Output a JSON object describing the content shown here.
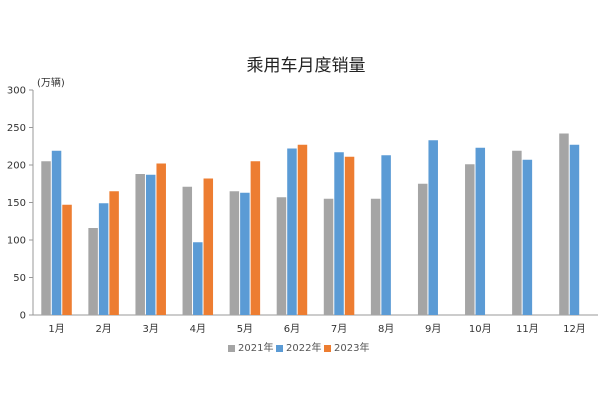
{
  "chart_data": {
    "type": "bar",
    "title": "乘用车月度销量",
    "unit_label": "(万辆)",
    "xlabel": "",
    "ylabel": "",
    "ylim": [
      0,
      300
    ],
    "yticks": [
      0,
      50,
      100,
      150,
      200,
      250,
      300
    ],
    "grid": false,
    "legend_position": "bottom",
    "categories": [
      "1月",
      "2月",
      "3月",
      "4月",
      "5月",
      "6月",
      "7月",
      "8月",
      "9月",
      "10月",
      "11月",
      "12月"
    ],
    "series": [
      {
        "name": "2021年",
        "color": "#a5a5a5",
        "values": [
          205,
          116,
          188,
          171,
          165,
          157,
          155,
          155,
          175,
          201,
          219,
          242
        ]
      },
      {
        "name": "2022年",
        "color": "#5b9bd5",
        "values": [
          219,
          149,
          187,
          97,
          163,
          222,
          217,
          213,
          233,
          223,
          207,
          227
        ]
      },
      {
        "name": "2023年",
        "color": "#ed7d31",
        "values": [
          147,
          165,
          202,
          182,
          205,
          227,
          211,
          null,
          null,
          null,
          null,
          null
        ]
      }
    ]
  }
}
